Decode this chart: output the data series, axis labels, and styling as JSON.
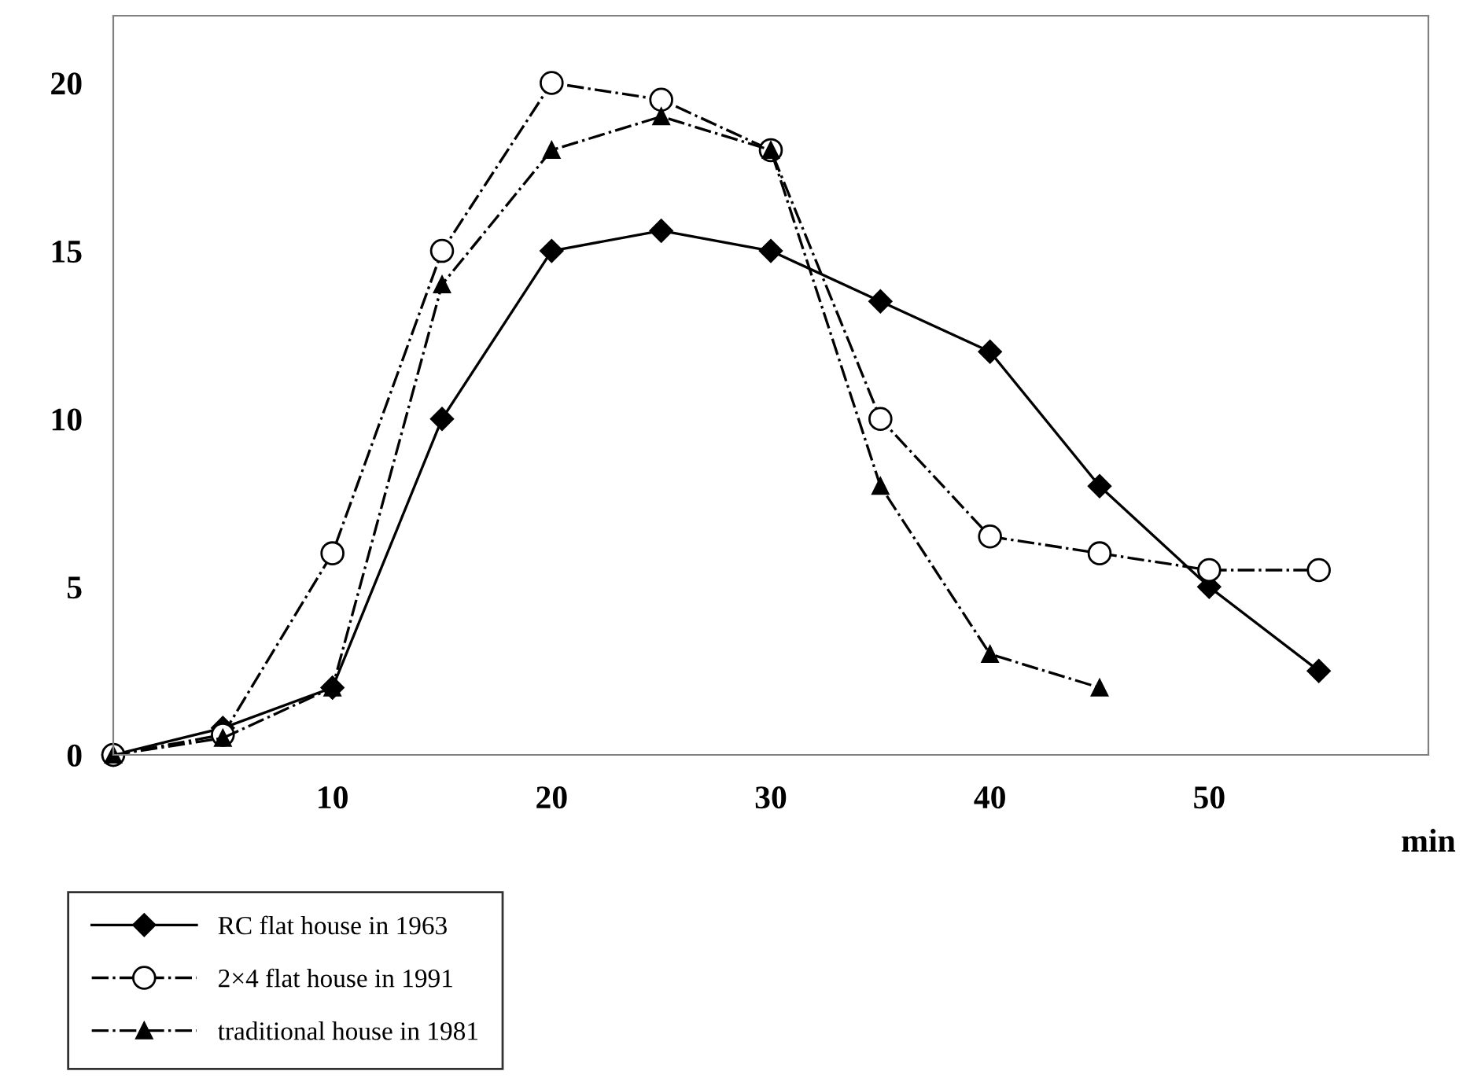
{
  "chart_data": {
    "type": "line",
    "xlabel": "min",
    "xlim": [
      0,
      60
    ],
    "xticks": [
      10,
      20,
      30,
      40,
      50
    ],
    "ylim": [
      0,
      22
    ],
    "yticks": [
      0,
      5,
      10,
      15,
      20
    ],
    "grid": false,
    "legend": "bottom left",
    "series": [
      {
        "name": "RC flat house in 1963",
        "color": "#000000",
        "marker": "diamond",
        "line_style": "solid",
        "x": [
          0,
          5,
          10,
          15,
          20,
          25,
          30,
          35,
          40,
          45,
          50,
          55
        ],
        "values": [
          0,
          0.8,
          2,
          10,
          15,
          15.6,
          15,
          13.5,
          12,
          8,
          5,
          2.5
        ]
      },
      {
        "name": "2×4 flat house in 1991",
        "color": "#000000",
        "marker": "circle",
        "line_style": "dashdot",
        "x": [
          0,
          5,
          10,
          15,
          20,
          25,
          30,
          35,
          40,
          45,
          50,
          55
        ],
        "values": [
          0,
          0.6,
          6,
          15,
          20,
          19.5,
          18,
          10,
          6.5,
          6,
          5.5,
          5.5
        ]
      },
      {
        "name": "traditional house in 1981",
        "color": "#000000",
        "marker": "triangle",
        "line_style": "dashdot",
        "x": [
          0,
          5,
          10,
          15,
          20,
          25,
          30,
          35,
          40,
          45
        ],
        "values": [
          0,
          0.5,
          2,
          14,
          18,
          19,
          18,
          8,
          3,
          2
        ]
      }
    ]
  }
}
